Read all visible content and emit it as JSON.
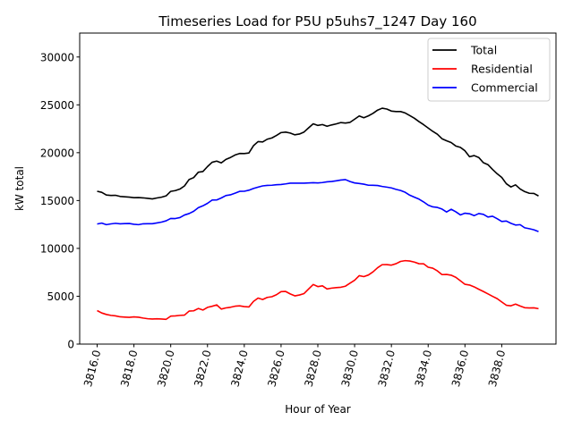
{
  "chart_data": {
    "type": "line",
    "title": "Timeseries Load for P5U p5uhs7_1247  Day 160",
    "xlabel": "Hour of Year",
    "ylabel": "kW total",
    "xlim": [
      3815.05,
      3840.95
    ],
    "ylim": [
      0,
      32500
    ],
    "xticks": [
      3816,
      3818,
      3820,
      3822,
      3824,
      3826,
      3828,
      3830,
      3832,
      3834,
      3836,
      3838
    ],
    "xtick_labels": [
      "3816.0",
      "3818.0",
      "3820.0",
      "3822.0",
      "3824.0",
      "3826.0",
      "3828.0",
      "3830.0",
      "3832.0",
      "3834.0",
      "3836.0",
      "3838.0"
    ],
    "yticks": [
      0,
      5000,
      10000,
      15000,
      20000,
      25000,
      30000
    ],
    "ytick_labels": [
      "0",
      "5000",
      "10000",
      "15000",
      "20000",
      "25000",
      "30000"
    ],
    "grid": false,
    "legend_position": "top-right",
    "x_start": 3816,
    "x_step": 0.25,
    "series": [
      {
        "name": "Total",
        "color": "#000000",
        "values": [
          15970,
          15860,
          15580,
          15530,
          15550,
          15430,
          15390,
          15360,
          15300,
          15310,
          15280,
          15230,
          15170,
          15270,
          15350,
          15490,
          15960,
          16040,
          16200,
          16530,
          17200,
          17400,
          17960,
          18030,
          18550,
          19000,
          19120,
          18930,
          19300,
          19500,
          19760,
          19920,
          19910,
          19970,
          20730,
          21160,
          21120,
          21410,
          21540,
          21800,
          22100,
          22150,
          22050,
          21870,
          21950,
          22160,
          22600,
          23020,
          22850,
          22940,
          22760,
          22900,
          23010,
          23150,
          23100,
          23170,
          23500,
          23840,
          23650,
          23850,
          24110,
          24450,
          24650,
          24560,
          24350,
          24300,
          24300,
          24150,
          23880,
          23600,
          23250,
          22930,
          22580,
          22230,
          21930,
          21460,
          21250,
          21060,
          20700,
          20560,
          20200,
          19580,
          19700,
          19500,
          18960,
          18750,
          18250,
          17800,
          17420,
          16760,
          16420,
          16640,
          16210,
          15930,
          15760,
          15740,
          15480
        ]
      },
      {
        "name": "Residential",
        "color": "#ff0000",
        "values": [
          3500,
          3250,
          3100,
          3000,
          2950,
          2850,
          2820,
          2800,
          2840,
          2810,
          2720,
          2650,
          2620,
          2640,
          2620,
          2590,
          2920,
          2950,
          3000,
          3030,
          3450,
          3480,
          3720,
          3560,
          3840,
          3950,
          4100,
          3660,
          3780,
          3850,
          3960,
          4000,
          3920,
          3880,
          4460,
          4810,
          4660,
          4880,
          4950,
          5160,
          5480,
          5500,
          5240,
          5040,
          5130,
          5280,
          5760,
          6230,
          6010,
          6090,
          5760,
          5850,
          5900,
          5940,
          6050,
          6370,
          6670,
          7150,
          7050,
          7220,
          7550,
          7980,
          8300,
          8310,
          8250,
          8400,
          8640,
          8720,
          8680,
          8570,
          8400,
          8390,
          8030,
          7930,
          7650,
          7260,
          7280,
          7200,
          6980,
          6620,
          6250,
          6170,
          5980,
          5730,
          5500,
          5250,
          4990,
          4750,
          4400,
          4060,
          4000,
          4180,
          3980,
          3800,
          3780,
          3790,
          3700
        ]
      },
      {
        "name": "Commercial",
        "color": "#0000ff",
        "values": [
          12550,
          12640,
          12480,
          12560,
          12620,
          12570,
          12590,
          12600,
          12520,
          12480,
          12570,
          12580,
          12580,
          12660,
          12750,
          12880,
          13130,
          13120,
          13220,
          13490,
          13640,
          13880,
          14250,
          14450,
          14710,
          15050,
          15060,
          15270,
          15520,
          15600,
          15770,
          15960,
          15970,
          16080,
          16260,
          16400,
          16530,
          16580,
          16600,
          16650,
          16680,
          16740,
          16820,
          16820,
          16820,
          16820,
          16840,
          16860,
          16840,
          16880,
          16960,
          16990,
          17060,
          17140,
          17190,
          16990,
          16840,
          16780,
          16710,
          16600,
          16590,
          16570,
          16470,
          16400,
          16320,
          16170,
          16050,
          15860,
          15560,
          15350,
          15150,
          14860,
          14520,
          14340,
          14280,
          14110,
          13800,
          14090,
          13830,
          13500,
          13680,
          13620,
          13420,
          13640,
          13560,
          13280,
          13360,
          13100,
          12810,
          12860,
          12620,
          12440,
          12480,
          12150,
          12060,
          11940,
          11750
        ]
      }
    ]
  }
}
